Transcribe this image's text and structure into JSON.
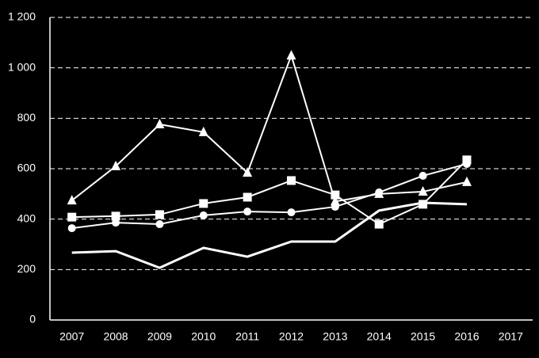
{
  "chart_data": {
    "type": "line",
    "categories": [
      "2007",
      "2008",
      "2009",
      "2010",
      "2011",
      "2012",
      "2013",
      "2014",
      "2015",
      "2016",
      "2017"
    ],
    "series": [
      {
        "color": "#ffffff",
        "marker": "triangle",
        "values": [
          474,
          610,
          776,
          745,
          584,
          1049,
          470,
          500,
          509,
          547,
          null
        ]
      },
      {
        "color": "#ffffff",
        "marker": "square",
        "values": [
          408,
          412,
          418,
          462,
          487,
          553,
          496,
          380,
          459,
          635,
          null
        ]
      },
      {
        "color": "#ffffff",
        "marker": "circle",
        "values": [
          364,
          386,
          380,
          415,
          430,
          427,
          449,
          506,
          572,
          619,
          null
        ]
      },
      {
        "color": "#ffffff",
        "marker": "none",
        "values": [
          267,
          273,
          207,
          286,
          251,
          311,
          311,
          434,
          465,
          459,
          null
        ]
      }
    ],
    "ylim": [
      0,
      1200
    ],
    "yticks": [
      0,
      200,
      400,
      600,
      800,
      {
        "value": 1000,
        "label": "1 000"
      },
      {
        "value": 1200,
        "label": "1 200"
      }
    ],
    "grid": true
  }
}
